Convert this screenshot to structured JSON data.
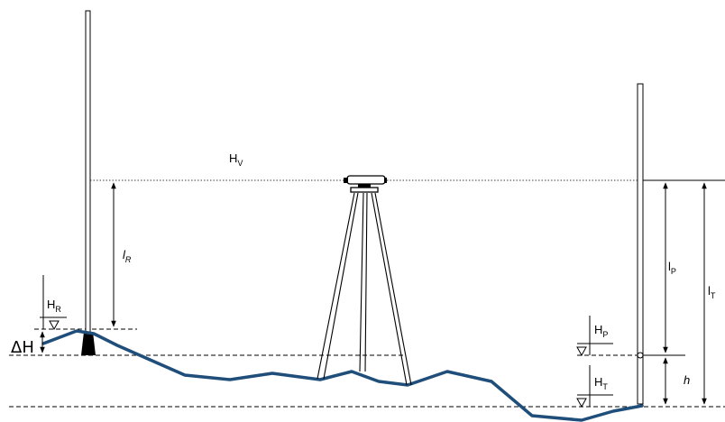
{
  "labels": {
    "hv_main": "H",
    "hv_sub": "V",
    "lr_main": "l",
    "lr_sub": "R",
    "hr_main": "H",
    "hr_sub": "R",
    "delta_h": "ΔH",
    "lp_main": "l",
    "lp_sub": "P",
    "lt_main": "l",
    "lt_sub": "T",
    "hp_main": "H",
    "hp_sub": "P",
    "ht_main": "H",
    "ht_sub": "T",
    "h": "h"
  },
  "colors": {
    "ground": "#1f4e7a",
    "lines": "#000000"
  }
}
